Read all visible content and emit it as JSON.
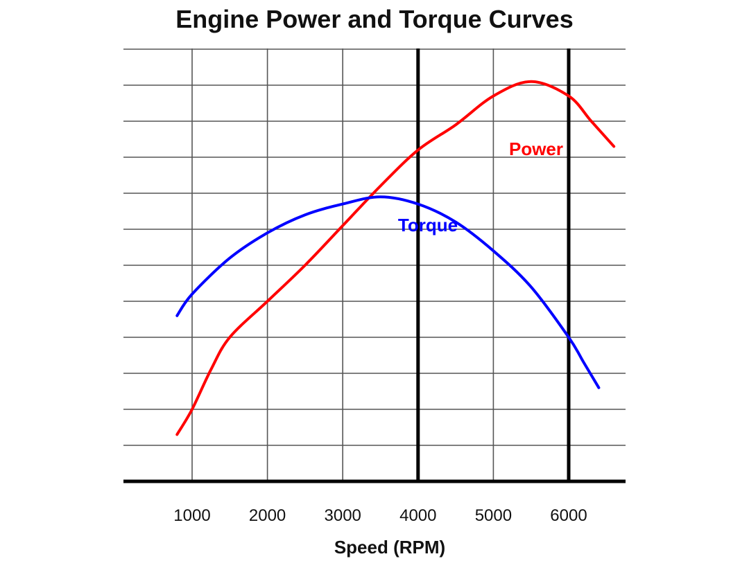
{
  "chart_data": {
    "type": "line",
    "title": "Engine Power and Torque Curves",
    "xlabel": "Speed (RPM)",
    "ylabel": "",
    "xlim": [
      800,
      6600
    ],
    "ylim": [
      0,
      12
    ],
    "x_ticks": [
      "1000",
      "2000",
      "3000",
      "4000",
      "5000",
      "6000"
    ],
    "grid": true,
    "legend": "none",
    "markers_x": [
      4000,
      6000
    ],
    "series": [
      {
        "name": "Power",
        "color": "#ff0000",
        "points": [
          [
            800,
            1.3
          ],
          [
            1000,
            2.0
          ],
          [
            1250,
            3.1
          ],
          [
            1500,
            4.0
          ],
          [
            2000,
            5.0
          ],
          [
            2500,
            6.0
          ],
          [
            3000,
            7.1
          ],
          [
            3500,
            8.2
          ],
          [
            4000,
            9.2
          ],
          [
            4500,
            9.9
          ],
          [
            5000,
            10.7
          ],
          [
            5500,
            11.1
          ],
          [
            6000,
            10.7
          ],
          [
            6300,
            10.0
          ],
          [
            6600,
            9.3
          ]
        ]
      },
      {
        "name": "Torque",
        "color": "#0000ff",
        "points": [
          [
            800,
            4.6
          ],
          [
            1000,
            5.2
          ],
          [
            1500,
            6.2
          ],
          [
            2000,
            6.9
          ],
          [
            2500,
            7.4
          ],
          [
            3000,
            7.7
          ],
          [
            3500,
            7.9
          ],
          [
            4000,
            7.7
          ],
          [
            4500,
            7.2
          ],
          [
            5000,
            6.4
          ],
          [
            5500,
            5.4
          ],
          [
            6000,
            4.0
          ],
          [
            6200,
            3.3
          ],
          [
            6400,
            2.6
          ]
        ]
      }
    ]
  }
}
